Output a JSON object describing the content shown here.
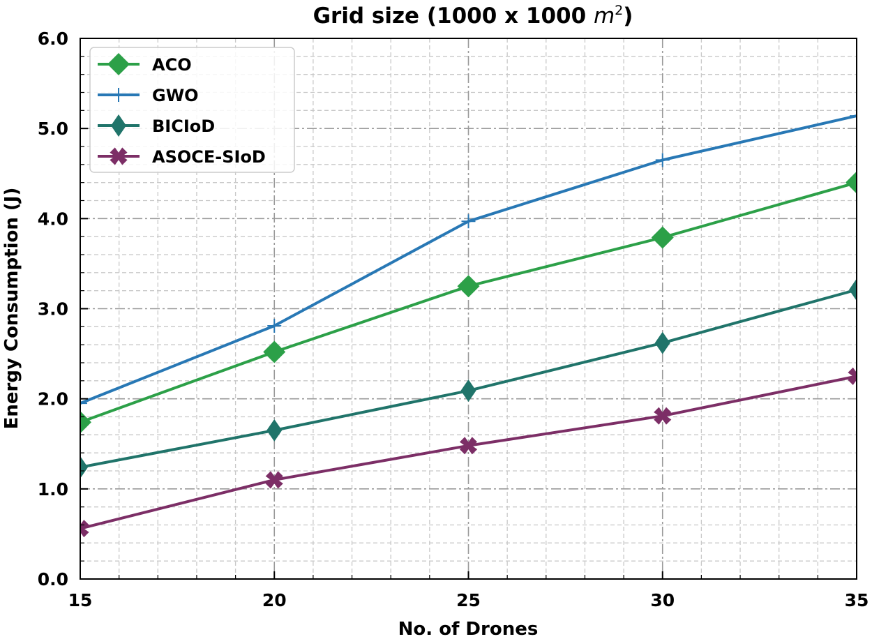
{
  "chart_data": {
    "type": "line",
    "title_main": "Grid size (1000 x 1000 ",
    "title_var": "m",
    "title_sup": "2",
    "title_close": ")",
    "xlabel": "No. of Drones",
    "ylabel": "Energy Consumption (J)",
    "x": [
      15,
      20,
      25,
      30,
      35
    ],
    "xlim": [
      15,
      35
    ],
    "ylim": [
      0,
      6
    ],
    "xticks": [
      15,
      20,
      25,
      30,
      35
    ],
    "xtick_labels": [
      "15",
      "20",
      "25",
      "30",
      "35"
    ],
    "yticks": [
      0,
      1,
      2,
      3,
      4,
      5,
      6
    ],
    "ytick_labels": [
      "0.0",
      "1.0",
      "2.0",
      "3.0",
      "4.0",
      "5.0",
      "6.0"
    ],
    "grid": true,
    "legend_position": "top-left",
    "series": [
      {
        "name": "ACO",
        "color": "#2ca048",
        "marker": "diamond",
        "values": [
          1.74,
          2.52,
          3.25,
          3.79,
          4.4
        ]
      },
      {
        "name": "GWO",
        "color": "#2878b5",
        "marker": "plus",
        "values": [
          1.95,
          2.81,
          3.97,
          4.65,
          5.14
        ]
      },
      {
        "name": "BICIoD",
        "color": "#20746a",
        "marker": "thin-diamond",
        "values": [
          1.24,
          1.65,
          2.09,
          2.62,
          3.21
        ]
      },
      {
        "name": "ASOCE-SIoD",
        "color": "#7c2e66",
        "marker": "x-filled",
        "values": [
          0.56,
          1.1,
          1.48,
          1.81,
          2.25
        ]
      }
    ]
  }
}
